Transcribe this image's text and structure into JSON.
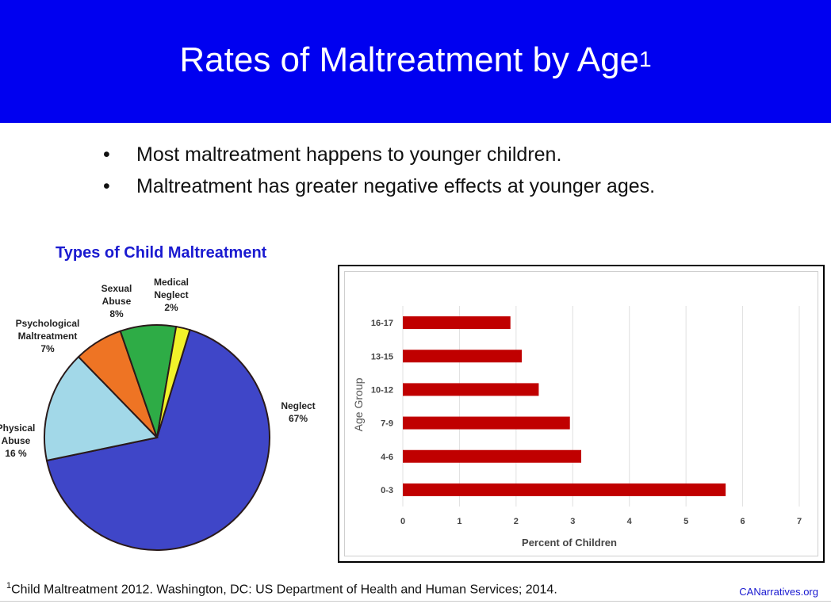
{
  "slide": {
    "title": "Rates of Maltreatment by Age",
    "title_superscript": "1",
    "bullets": [
      "Most maltreatment happens to younger children.",
      "Maltreatment has greater negative effects at younger ages."
    ],
    "footnote_superscript": "1",
    "footnote": "Child Maltreatment 2012. Washington, DC: US Department of Health and Human Services; 2014.",
    "brand": "CANarratives.org",
    "colors": {
      "header": "#0000f0",
      "title_text": "#ffffff",
      "accent_text": "#1a1ad0"
    }
  },
  "chart_data": [
    {
      "type": "pie",
      "title": "Types of Child Maltreatment",
      "slices": [
        {
          "label_lines": [
            "Neglect",
            "67%"
          ],
          "value": 67,
          "color": "#3f46c8"
        },
        {
          "label_lines": [
            "Physical",
            "Abuse",
            "16 %"
          ],
          "value": 16,
          "color": "#a2d8e8"
        },
        {
          "label_lines": [
            "Psychological",
            "Maltreatment",
            "7%"
          ],
          "value": 7,
          "color": "#ee7424"
        },
        {
          "label_lines": [
            "Sexual",
            "Abuse",
            "8%"
          ],
          "value": 8,
          "color": "#2eac46"
        },
        {
          "label_lines": [
            "Medical",
            "Neglect",
            "2%"
          ],
          "value": 2,
          "color": "#f2f22a"
        }
      ]
    },
    {
      "type": "bar",
      "orientation": "horizontal",
      "categories": [
        "16-17",
        "13-15",
        "10-12",
        "7-9",
        "4-6",
        "0-3"
      ],
      "values": [
        1.9,
        2.1,
        2.4,
        2.95,
        3.15,
        5.7
      ],
      "xlabel": "Percent of Children",
      "ylabel": "Age Group",
      "xlim": [
        0,
        7
      ],
      "xticks": [
        "0",
        "1",
        "2",
        "3",
        "4",
        "5",
        "6",
        "7"
      ],
      "grid": true,
      "bar_color": "#c00000"
    }
  ]
}
